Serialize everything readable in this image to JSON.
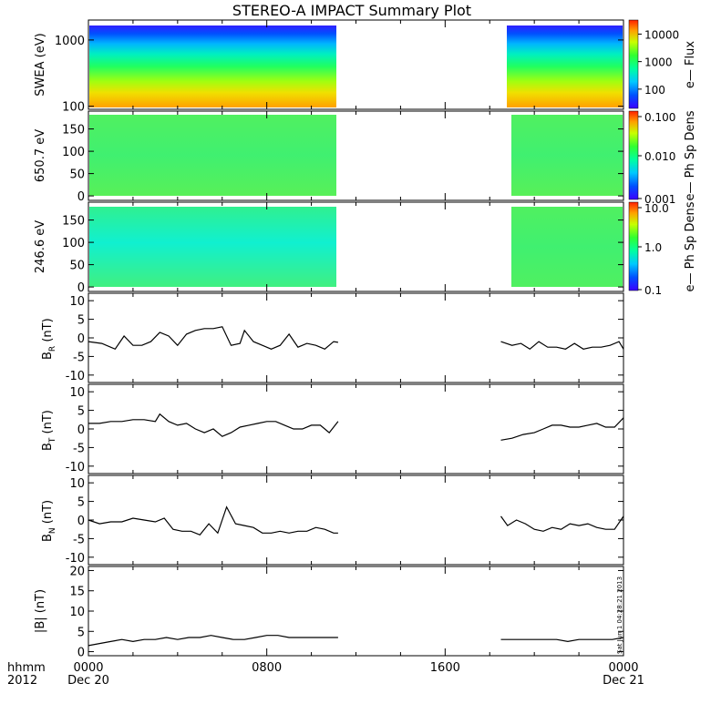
{
  "title": "STEREO-A IMPACT Summary Plot",
  "stamp": "Sat Jun 1 04:28:21 2013",
  "time_axis": {
    "corner_top": "hhmm",
    "corner_bottom": "2012",
    "ticks": [
      {
        "time": "0000",
        "date": "Dec 20",
        "hour": 0
      },
      {
        "time": "0800",
        "date": "",
        "hour": 8
      },
      {
        "time": "1600",
        "date": "",
        "hour": 16
      },
      {
        "time": "0000",
        "date": "Dec 21",
        "hour": 24
      }
    ],
    "range_hours": [
      0,
      24
    ],
    "data_gap_hours": [
      11.2,
      18.5
    ]
  },
  "colors": {
    "line": "#000000",
    "frame": "#000000",
    "background": "#ffffff"
  },
  "chart_data": [
    {
      "type": "heatmap",
      "panel": "swea",
      "ylabel": "SWEA (eV)",
      "y_scale": "log",
      "ylim": [
        90,
        2000
      ],
      "yticks": [
        {
          "value": 100,
          "label": "100"
        },
        {
          "value": 1000,
          "label": "1000"
        }
      ],
      "colorbar": {
        "label": "e— Flux",
        "scale": "log",
        "range": [
          20,
          30000
        ],
        "ticks": [
          {
            "value": 100,
            "label": "100"
          },
          {
            "value": 1000,
            "label": "1000"
          },
          {
            "value": 10000,
            "label": "10000"
          }
        ]
      },
      "segments_hours": [
        [
          0,
          11.2
        ],
        [
          18.5,
          24
        ]
      ],
      "description_levels": "flux highest (~10000+) near 100 eV, falling to ~30 near 2000 eV"
    },
    {
      "type": "heatmap",
      "panel": "pad650",
      "ylabel": "650.7 eV",
      "y_scale": "linear",
      "ylim": [
        -10,
        190
      ],
      "yticks": [
        {
          "value": 0,
          "label": "0"
        },
        {
          "value": 50,
          "label": "50"
        },
        {
          "value": 100,
          "label": "100"
        },
        {
          "value": 150,
          "label": "150"
        }
      ],
      "colorbar": {
        "label": "e— Ph Sp Dens",
        "scale": "log",
        "range": [
          0.001,
          0.1
        ],
        "ticks": [
          {
            "value": 0.001,
            "label": "0.001"
          },
          {
            "value": 0.01,
            "label": "0.010"
          },
          {
            "value": 0.1,
            "label": "0.100"
          }
        ]
      },
      "segments_hours": [
        [
          0,
          11.2
        ],
        [
          18.7,
          24
        ]
      ],
      "description_levels": "nearly uniform ~0.01 across pitch angles"
    },
    {
      "type": "heatmap",
      "panel": "pad246",
      "ylabel": "246.6 eV",
      "y_scale": "linear",
      "ylim": [
        -10,
        190
      ],
      "yticks": [
        {
          "value": 0,
          "label": "0"
        },
        {
          "value": 50,
          "label": "50"
        },
        {
          "value": 100,
          "label": "100"
        },
        {
          "value": 150,
          "label": "150"
        }
      ],
      "colorbar": {
        "label": "e— Ph Sp Dens",
        "scale": "log",
        "range": [
          0.1,
          10
        ],
        "ticks": [
          {
            "value": 0.1,
            "label": "0.1"
          },
          {
            "value": 1,
            "label": "1.0"
          },
          {
            "value": 10,
            "label": "10.0"
          }
        ]
      },
      "segments_hours": [
        [
          0,
          11.2
        ],
        [
          18.7,
          24
        ]
      ],
      "description_levels": "~1 across pitch angles, slightly lower (cyan) mid pitch angles early in day"
    },
    {
      "type": "line",
      "panel": "br",
      "ylabel": "B",
      "ylabel_sub": "R",
      "ylabel_unit": "(nT)",
      "ylim": [
        -12,
        12
      ],
      "yticks": [
        {
          "value": -10,
          "label": "-10"
        },
        {
          "value": -5,
          "label": "-5"
        },
        {
          "value": 0,
          "label": "0"
        },
        {
          "value": 5,
          "label": "5"
        },
        {
          "value": 10,
          "label": "10"
        }
      ],
      "series": [
        {
          "x": [
            0,
            0.6,
            1.2,
            1.6,
            2.0,
            2.4,
            2.8,
            3.2,
            3.6,
            4.0,
            4.4,
            4.8,
            5.2,
            5.6,
            6.0,
            6.4,
            6.8,
            7.0,
            7.4,
            7.8,
            8.2,
            8.6,
            9.0,
            9.4,
            9.8,
            10.2,
            10.6,
            11.0,
            11.2
          ],
          "y": [
            -1,
            -1.5,
            -3,
            0.5,
            -2,
            -2,
            -1,
            1.5,
            0.5,
            -2,
            1,
            2,
            2.5,
            2.5,
            3,
            -2,
            -1.5,
            2,
            -1,
            -2,
            -3,
            -2,
            1,
            -2.5,
            -1.5,
            -2,
            -3,
            -1,
            -1.2
          ]
        },
        {
          "x": [
            18.5,
            19.0,
            19.4,
            19.8,
            20.2,
            20.6,
            21.0,
            21.4,
            21.8,
            22.2,
            22.6,
            23.0,
            23.4,
            23.8,
            24
          ],
          "y": [
            -1,
            -2,
            -1.5,
            -3,
            -1,
            -2.5,
            -2.5,
            -3,
            -1.5,
            -3,
            -2.5,
            -2.5,
            -2,
            -1,
            -3
          ]
        }
      ]
    },
    {
      "type": "line",
      "panel": "bt",
      "ylabel": "B",
      "ylabel_sub": "T",
      "ylabel_unit": "(nT)",
      "ylim": [
        -12,
        12
      ],
      "yticks": [
        {
          "value": -10,
          "label": "-10"
        },
        {
          "value": -5,
          "label": "-5"
        },
        {
          "value": 0,
          "label": "0"
        },
        {
          "value": 5,
          "label": "5"
        },
        {
          "value": 10,
          "label": "10"
        }
      ],
      "series": [
        {
          "x": [
            0,
            0.5,
            1.0,
            1.5,
            2.0,
            2.5,
            3.0,
            3.2,
            3.6,
            4.0,
            4.4,
            4.8,
            5.2,
            5.6,
            6.0,
            6.4,
            6.8,
            7.2,
            7.6,
            8.0,
            8.4,
            8.8,
            9.2,
            9.6,
            10.0,
            10.4,
            10.8,
            11.2
          ],
          "y": [
            1.5,
            1.5,
            2,
            2,
            2.5,
            2.5,
            2,
            4,
            2,
            1,
            1.5,
            0,
            -1,
            0,
            -2,
            -1,
            0.5,
            1,
            1.5,
            2,
            2,
            1,
            0,
            0,
            1,
            1,
            -1,
            2
          ]
        },
        {
          "x": [
            18.5,
            19.0,
            19.5,
            20.0,
            20.4,
            20.8,
            21.2,
            21.6,
            22.0,
            22.4,
            22.8,
            23.2,
            23.6,
            24
          ],
          "y": [
            -3,
            -2.5,
            -1.5,
            -1,
            0,
            1,
            1,
            0.5,
            0.5,
            1,
            1.5,
            0.5,
            0.5,
            3
          ]
        }
      ]
    },
    {
      "type": "line",
      "panel": "bn",
      "ylabel": "B",
      "ylabel_sub": "N",
      "ylabel_unit": "(nT)",
      "ylim": [
        -12,
        12
      ],
      "yticks": [
        {
          "value": -10,
          "label": "-10"
        },
        {
          "value": -5,
          "label": "-5"
        },
        {
          "value": 0,
          "label": "0"
        },
        {
          "value": 5,
          "label": "5"
        },
        {
          "value": 10,
          "label": "10"
        }
      ],
      "series": [
        {
          "x": [
            0,
            0.5,
            1.0,
            1.5,
            2.0,
            2.5,
            3.0,
            3.4,
            3.8,
            4.2,
            4.6,
            5.0,
            5.4,
            5.8,
            6.2,
            6.6,
            7.0,
            7.4,
            7.8,
            8.2,
            8.6,
            9.0,
            9.4,
            9.8,
            10.2,
            10.6,
            11.0,
            11.2
          ],
          "y": [
            0,
            -1,
            -0.5,
            -0.5,
            0.5,
            0,
            -0.5,
            0.5,
            -2.5,
            -3,
            -3,
            -4,
            -1,
            -3.5,
            3.5,
            -1,
            -1.5,
            -2,
            -3.5,
            -3.5,
            -3,
            -3.5,
            -3,
            -3,
            -2,
            -2.5,
            -3.5,
            -3.5
          ]
        },
        {
          "x": [
            18.5,
            18.8,
            19.2,
            19.6,
            20.0,
            20.4,
            20.8,
            21.2,
            21.6,
            22.0,
            22.4,
            22.8,
            23.2,
            23.6,
            24
          ],
          "y": [
            1,
            -1.5,
            0,
            -1,
            -2.5,
            -3,
            -2,
            -2.5,
            -1,
            -1.5,
            -1,
            -2,
            -2.5,
            -2.5,
            1
          ]
        }
      ]
    },
    {
      "type": "line",
      "panel": "bmag",
      "ylabel": "|B| (nT)",
      "ylim": [
        -1,
        21
      ],
      "yticks": [
        {
          "value": 0,
          "label": "0"
        },
        {
          "value": 5,
          "label": "5"
        },
        {
          "value": 10,
          "label": "10"
        },
        {
          "value": 15,
          "label": "15"
        },
        {
          "value": 20,
          "label": "20"
        }
      ],
      "series": [
        {
          "x": [
            0,
            0.5,
            1.0,
            1.5,
            2.0,
            2.5,
            3.0,
            3.5,
            4.0,
            4.5,
            5.0,
            5.5,
            6.0,
            6.5,
            7.0,
            7.5,
            8.0,
            8.5,
            9.0,
            9.5,
            10.0,
            10.5,
            11.0,
            11.2
          ],
          "y": [
            1.5,
            2,
            2.5,
            3,
            2.5,
            3,
            3,
            3.5,
            3,
            3.5,
            3.5,
            4,
            3.5,
            3,
            3,
            3.5,
            4,
            4,
            3.5,
            3.5,
            3.5,
            3.5,
            3.5,
            3.5
          ]
        },
        {
          "x": [
            18.5,
            19.0,
            19.5,
            20.0,
            20.5,
            21.0,
            21.5,
            22.0,
            22.5,
            23.0,
            23.5,
            24
          ],
          "y": [
            3,
            3,
            3,
            3,
            3,
            3,
            2.5,
            3,
            3,
            3,
            3,
            3.5
          ]
        }
      ]
    }
  ]
}
